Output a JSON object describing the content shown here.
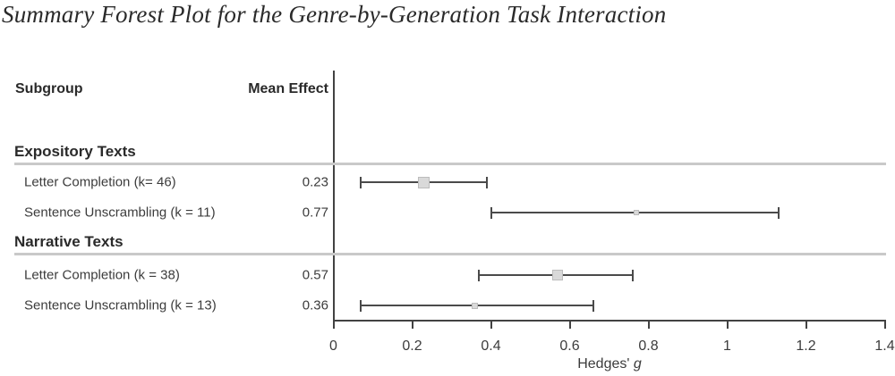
{
  "title": "Summary Forest Plot for the Genre-by-Generation Task Interaction",
  "colors": {
    "background": "#ffffff",
    "text": "#2a2a2a",
    "text_secondary": "#3c3c3c",
    "axis_line": "#424242",
    "ci_line": "#4a4a4a",
    "marker_fill": "#d9d9d9",
    "marker_border": "#bcbcbc",
    "group_separator": "#c9c9c9"
  },
  "chart_data": {
    "type": "forest",
    "title": "Summary Forest Plot for the Genre-by-Generation Task Interaction",
    "columns": {
      "subgroup": "Subgroup",
      "mean_effect": "Mean Effect"
    },
    "xlabel_prefix": "Hedges' ",
    "xlabel_italic": "g",
    "xlim": [
      0,
      1.4
    ],
    "ticks": [
      0,
      0.2,
      0.4,
      0.6,
      0.8,
      1,
      1.2,
      1.4
    ],
    "tick_labels": [
      "0",
      "0.2",
      "0.4",
      "0.6",
      "0.8",
      "1",
      "1.2",
      "1.4"
    ],
    "grid": false,
    "zero_reference_line": true,
    "groups": [
      {
        "label": "Expository Texts",
        "studies": [
          {
            "label": "Letter Completion (k= 46)",
            "k": 46,
            "mean": 0.23,
            "mean_label": "0.23",
            "ci_low": 0.07,
            "ci_high": 0.39
          },
          {
            "label": "Sentence Unscrambling (k = 11)",
            "k": 11,
            "mean": 0.77,
            "mean_label": "0.77",
            "ci_low": 0.4,
            "ci_high": 1.13
          }
        ]
      },
      {
        "label": "Narrative Texts",
        "studies": [
          {
            "label": "Letter Completion (k = 38)",
            "k": 38,
            "mean": 0.57,
            "mean_label": "0.57",
            "ci_low": 0.37,
            "ci_high": 0.76
          },
          {
            "label": "Sentence Unscrambling (k = 13)",
            "k": 13,
            "mean": 0.36,
            "mean_label": "0.36",
            "ci_low": 0.07,
            "ci_high": 0.66
          }
        ]
      }
    ]
  }
}
